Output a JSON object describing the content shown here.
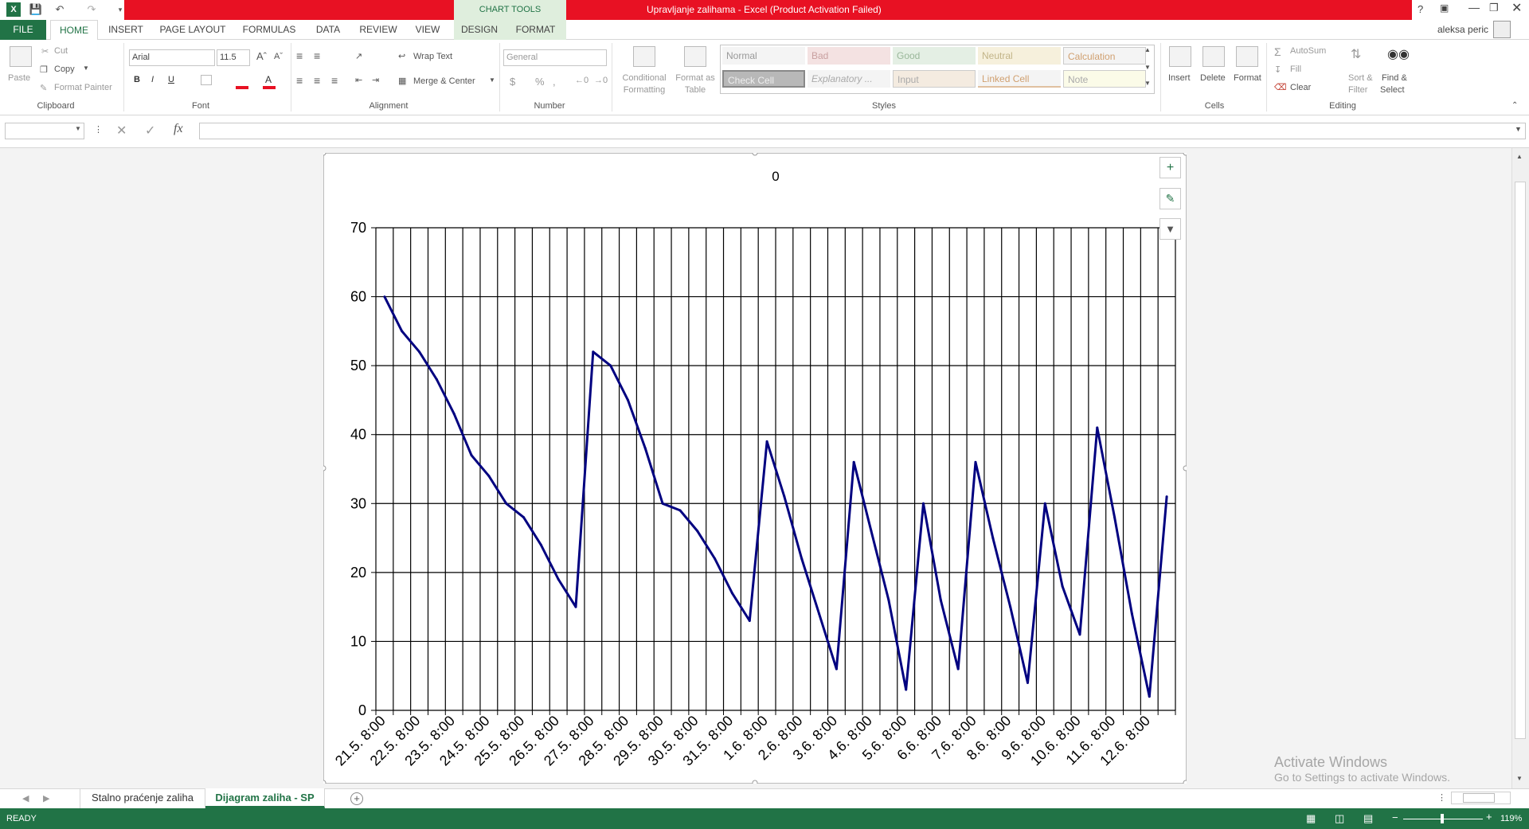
{
  "window": {
    "title": "Upravljanje zalihama -  Excel (Product Activation Failed)",
    "context_group": "CHART TOOLS",
    "user": "aleksa peric",
    "help": "?"
  },
  "tabs": [
    "FILE",
    "HOME",
    "INSERT",
    "PAGE LAYOUT",
    "FORMULAS",
    "DATA",
    "REVIEW",
    "VIEW",
    "DESIGN",
    "FORMAT"
  ],
  "ribbon": {
    "clipboard": {
      "paste": "Paste",
      "cut": "Cut",
      "copy": "Copy",
      "format_painter": "Format Painter",
      "label": "Clipboard"
    },
    "font": {
      "name": "Arial",
      "size": "11.5",
      "label": "Font",
      "bold": "B",
      "italic": "I",
      "underline": "U"
    },
    "alignment": {
      "wrap": "Wrap Text",
      "merge": "Merge & Center",
      "label": "Alignment"
    },
    "number": {
      "format": "General",
      "currency": "$",
      "percent": "%",
      "comma": ",",
      "label": "Number"
    },
    "styles_group": {
      "conditional_1": "Conditional",
      "conditional_2": "Formatting",
      "format_table_1": "Format as",
      "format_table_2": "Table",
      "items": [
        "Normal",
        "Bad",
        "Good",
        "Neutral",
        "Calculation",
        "Check Cell",
        "Explanatory ...",
        "Input",
        "Linked Cell",
        "Note"
      ],
      "label": "Styles"
    },
    "cells": {
      "insert": "Insert",
      "delete": "Delete",
      "format": "Format",
      "label": "Cells"
    },
    "editing": {
      "autosum": "AutoSum",
      "fill": "Fill",
      "clear": "Clear",
      "sort_1": "Sort &",
      "sort_2": "Filter",
      "find_1": "Find &",
      "find_2": "Select",
      "label": "Editing"
    }
  },
  "formula_bar": {
    "name_box": "",
    "fx": "fx",
    "value": ""
  },
  "sheet_tabs": [
    "Stalno praćenje zaliha",
    "Dijagram zaliha - SP"
  ],
  "active_sheet": "Dijagram zaliha - SP",
  "status": {
    "ready": "READY",
    "zoom": "119%"
  },
  "watermark": {
    "line1": "Activate Windows",
    "line2": "Go to Settings to activate Windows."
  },
  "colors": {
    "excel_green": "#217346",
    "title_red": "#e81123",
    "series": "#000080"
  },
  "chart_data": {
    "type": "line",
    "title": "0",
    "ylim": [
      0,
      70
    ],
    "yticks": [
      0,
      10,
      20,
      30,
      40,
      50,
      60,
      70
    ],
    "grid": true,
    "xlabels": [
      "21.5. 8:00",
      "22.5. 8:00",
      "23.5. 8:00",
      "24.5. 8:00",
      "25.5. 8:00",
      "26.5. 8:00",
      "27.5. 8:00",
      "28.5. 8:00",
      "29.5. 8:00",
      "30.5. 8:00",
      "31.5. 8:00",
      "1.6. 8:00",
      "2.6. 8:00",
      "3.6. 8:00",
      "4.6. 8:00",
      "5.6. 8:00",
      "6.6. 8:00",
      "7.6. 8:00",
      "8.6. 8:00",
      "9.6. 8:00",
      "10.6. 8:00",
      "11.6. 8:00",
      "12.6. 8:00"
    ],
    "series": [
      {
        "values": [
          60,
          55,
          52,
          48,
          43,
          37,
          34,
          30,
          28,
          24,
          19,
          15,
          52,
          50,
          45,
          38,
          30,
          29,
          26,
          22,
          17,
          13,
          39,
          31,
          22,
          14,
          6,
          36,
          26,
          16,
          3,
          30,
          16,
          6,
          36,
          25,
          15,
          4,
          30,
          18,
          11,
          41,
          28,
          14,
          2,
          31
        ]
      }
    ]
  }
}
